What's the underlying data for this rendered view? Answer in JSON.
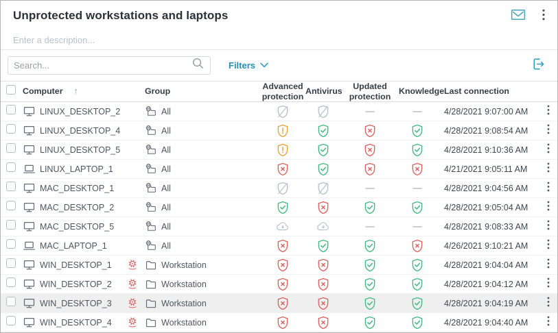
{
  "header": {
    "title": "Unprotected workstations and laptops",
    "description_placeholder": "Enter a description..."
  },
  "toolbar": {
    "search_placeholder": "Search...",
    "filters_label": "Filters"
  },
  "table": {
    "columns": [
      "Computer",
      "Group",
      "Advanced protection",
      "Antivirus",
      "Updated protection",
      "Knowledge",
      "Last connection"
    ],
    "sort_icon": "↑",
    "rows": [
      {
        "computer": "LINUX_DESKTOP_2",
        "device": "desktop",
        "reinstall_warning": false,
        "group": "All",
        "group_icon": "all",
        "statuses": [
          "disabled",
          "disabled",
          "none",
          "none"
        ],
        "last_connection": "4/28/2021 9:07:00 AM",
        "highlighted": false
      },
      {
        "computer": "LINUX_DESKTOP_4",
        "device": "desktop",
        "reinstall_warning": false,
        "group": "All",
        "group_icon": "all",
        "statuses": [
          "warning",
          "ok",
          "error",
          "ok"
        ],
        "last_connection": "4/28/2021 9:08:54 AM",
        "highlighted": false
      },
      {
        "computer": "LINUX_DESKTOP_5",
        "device": "desktop",
        "reinstall_warning": false,
        "group": "All",
        "group_icon": "all",
        "statuses": [
          "warning",
          "ok",
          "error",
          "ok"
        ],
        "last_connection": "4/28/2021 9:10:36 AM",
        "highlighted": false
      },
      {
        "computer": "LINUX_LAPTOP_1",
        "device": "laptop",
        "reinstall_warning": false,
        "group": "All",
        "group_icon": "all",
        "statuses": [
          "error",
          "ok",
          "error",
          "error"
        ],
        "last_connection": "4/21/2021 9:05:11 AM",
        "highlighted": false
      },
      {
        "computer": "MAC_DESKTOP_1",
        "device": "desktop",
        "reinstall_warning": false,
        "group": "All",
        "group_icon": "all",
        "statuses": [
          "disabled",
          "disabled",
          "none",
          "none"
        ],
        "last_connection": "4/28/2021 9:04:56 AM",
        "highlighted": false
      },
      {
        "computer": "MAC_DESKTOP_2",
        "device": "desktop",
        "reinstall_warning": false,
        "group": "All",
        "group_icon": "all",
        "statuses": [
          "ok",
          "error",
          "ok",
          "ok"
        ],
        "last_connection": "4/28/2021 9:05:04 AM",
        "highlighted": false
      },
      {
        "computer": "MAC_DESKTOP_5",
        "device": "desktop",
        "reinstall_warning": false,
        "group": "All",
        "group_icon": "all",
        "statuses": [
          "installing",
          "installing",
          "none",
          "none"
        ],
        "last_connection": "4/28/2021 9:08:33 AM",
        "highlighted": false
      },
      {
        "computer": "MAC_LAPTOP_1",
        "device": "laptop",
        "reinstall_warning": false,
        "group": "All",
        "group_icon": "all",
        "statuses": [
          "error",
          "ok",
          "ok",
          "error"
        ],
        "last_connection": "4/26/2021 9:10:21 AM",
        "highlighted": false
      },
      {
        "computer": "WIN_DESKTOP_1",
        "device": "desktop",
        "reinstall_warning": true,
        "group": "Workstation",
        "group_icon": "folder",
        "statuses": [
          "error",
          "error",
          "ok",
          "ok"
        ],
        "last_connection": "4/28/2021 9:04:04 AM",
        "highlighted": false
      },
      {
        "computer": "WIN_DESKTOP_2",
        "device": "desktop",
        "reinstall_warning": true,
        "group": "Workstation",
        "group_icon": "folder",
        "statuses": [
          "error",
          "error",
          "ok",
          "ok"
        ],
        "last_connection": "4/28/2021 9:04:12 AM",
        "highlighted": false
      },
      {
        "computer": "WIN_DESKTOP_3",
        "device": "desktop",
        "reinstall_warning": true,
        "group": "Workstation",
        "group_icon": "folder",
        "statuses": [
          "error",
          "error",
          "ok",
          "ok"
        ],
        "last_connection": "4/28/2021 9:04:19 AM",
        "highlighted": true
      },
      {
        "computer": "WIN_DESKTOP_4",
        "device": "desktop",
        "reinstall_warning": true,
        "group": "Workstation",
        "group_icon": "folder",
        "statuses": [
          "error",
          "error",
          "ok",
          "ok"
        ],
        "last_connection": "4/28/2021 9:04:40 AM",
        "highlighted": false
      }
    ]
  },
  "status_icon_names": {
    "ok": "shield-check-icon",
    "error": "shield-error-icon",
    "warning": "shield-warning-icon",
    "disabled": "protection-disabled-icon",
    "installing": "cloud-installing-icon",
    "none": "no-data-dash"
  },
  "colors": {
    "accent": "#2f9dbd",
    "green": "#43b97f",
    "red": "#d9625e",
    "orange": "#e9a13b",
    "muted": "#b7c0ce",
    "icon_gray": "#5f6a75",
    "highlight_row": "#efefef"
  }
}
